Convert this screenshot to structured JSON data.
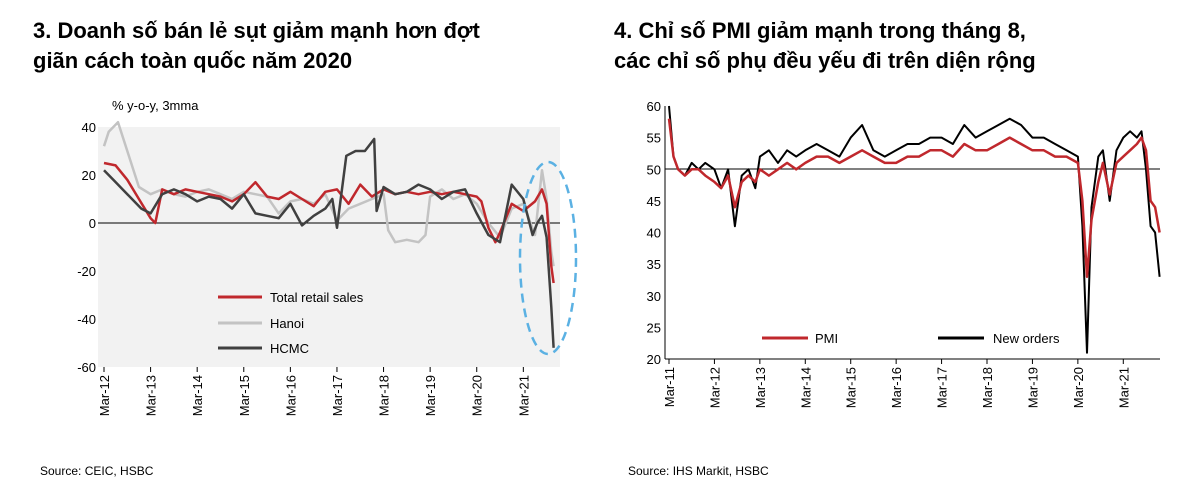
{
  "chart_data": [
    {
      "type": "line",
      "title_line1": "3. Doanh số bán lẻ sụt giảm mạnh hơn đợt",
      "title_line2": "giãn cách toàn quốc năm 2020",
      "ylabel": "% y-o-y, 3mma",
      "ylim": [
        -60,
        40
      ],
      "yticks": [
        "40",
        "20",
        "0",
        "-20",
        "-40",
        "-60"
      ],
      "yticks_values": [
        40,
        20,
        0,
        -20,
        -40,
        -60
      ],
      "xticks": [
        "Mar-12",
        "Mar-13",
        "Mar-14",
        "Mar-15",
        "Mar-16",
        "Mar-17",
        "Mar-18",
        "Mar-19",
        "Mar-20",
        "Mar-21"
      ],
      "xlim": [
        2012.0,
        2021.83
      ],
      "legend": [
        "Total retail sales",
        "Hanoi",
        "HCMC"
      ],
      "source": "Source:  CEIC, HSBC",
      "annotation": "dashed-ellipse highlighting 2021 drop",
      "series": [
        {
          "name": "Total retail sales",
          "color": "#c0282d",
          "x": [
            2012.0,
            2012.25,
            2012.5,
            2012.75,
            2013.0,
            2013.1,
            2013.25,
            2013.5,
            2013.75,
            2014.0,
            2014.25,
            2014.5,
            2014.75,
            2015.0,
            2015.25,
            2015.5,
            2015.75,
            2016.0,
            2016.25,
            2016.5,
            2016.75,
            2017.0,
            2017.25,
            2017.5,
            2017.75,
            2018.0,
            2018.25,
            2018.5,
            2018.75,
            2019.0,
            2019.25,
            2019.5,
            2019.75,
            2020.0,
            2020.1,
            2020.25,
            2020.4,
            2020.5,
            2020.75,
            2021.0,
            2021.25,
            2021.4,
            2021.5,
            2021.6,
            2021.65
          ],
          "y": [
            25,
            24,
            18,
            10,
            2,
            0,
            14,
            12,
            14,
            13,
            12,
            11,
            9,
            12,
            17,
            11,
            10,
            13,
            10,
            7,
            13,
            14,
            8,
            16,
            11,
            14,
            12,
            13,
            12,
            13,
            12,
            13,
            12,
            11,
            9,
            -2,
            -8,
            -4,
            8,
            5,
            9,
            14,
            8,
            -18,
            -25
          ]
        },
        {
          "name": "Hanoi",
          "color": "#c3c3c3",
          "x": [
            2012.0,
            2012.1,
            2012.3,
            2012.5,
            2012.75,
            2013.0,
            2013.25,
            2013.5,
            2013.75,
            2014.0,
            2014.25,
            2014.5,
            2014.75,
            2015.0,
            2015.25,
            2015.5,
            2015.75,
            2016.0,
            2016.25,
            2016.5,
            2016.75,
            2017.0,
            2017.25,
            2017.5,
            2017.75,
            2018.0,
            2018.1,
            2018.25,
            2018.5,
            2018.75,
            2018.9,
            2019.0,
            2019.25,
            2019.5,
            2019.75,
            2020.0,
            2020.25,
            2020.5,
            2020.75,
            2021.0,
            2021.25,
            2021.4,
            2021.5,
            2021.6,
            2021.65
          ],
          "y": [
            32,
            38,
            42,
            30,
            15,
            12,
            14,
            12,
            11,
            13,
            14,
            12,
            10,
            13,
            12,
            11,
            4,
            9,
            10,
            8,
            12,
            1,
            6,
            8,
            10,
            12,
            -3,
            -8,
            -7,
            -8,
            -5,
            11,
            14,
            10,
            12,
            8,
            0,
            -6,
            6,
            8,
            -5,
            22,
            10,
            -12,
            -18
          ]
        },
        {
          "name": "HCMC",
          "color": "#404040",
          "x": [
            2012.0,
            2012.2,
            2012.4,
            2012.6,
            2012.8,
            2013.0,
            2013.25,
            2013.5,
            2013.75,
            2014.0,
            2014.25,
            2014.5,
            2014.75,
            2015.0,
            2015.25,
            2015.5,
            2015.75,
            2016.0,
            2016.25,
            2016.5,
            2016.75,
            2016.9,
            2017.0,
            2017.2,
            2017.4,
            2017.6,
            2017.8,
            2017.85,
            2018.0,
            2018.25,
            2018.5,
            2018.75,
            2019.0,
            2019.25,
            2019.5,
            2019.75,
            2020.0,
            2020.25,
            2020.5,
            2020.75,
            2021.0,
            2021.2,
            2021.3,
            2021.4,
            2021.5,
            2021.6,
            2021.65
          ],
          "y": [
            22,
            18,
            14,
            10,
            6,
            4,
            12,
            14,
            12,
            9,
            11,
            10,
            6,
            12,
            4,
            3,
            2,
            8,
            -1,
            3,
            6,
            10,
            -2,
            28,
            30,
            30,
            35,
            5,
            15,
            12,
            13,
            16,
            14,
            10,
            13,
            14,
            4,
            -5,
            -8,
            16,
            10,
            -5,
            0,
            3,
            -6,
            -35,
            -52
          ]
        }
      ]
    },
    {
      "type": "line",
      "title_line1": "4. Chỉ số PMI giảm mạnh trong tháng 8,",
      "title_line2": "các chỉ số phụ đều yếu đi trên diện rộng",
      "ylim": [
        20,
        60
      ],
      "yticks": [
        "60",
        "55",
        "50",
        "45",
        "40",
        "35",
        "30",
        "25",
        "20"
      ],
      "yticks_values": [
        60,
        55,
        50,
        45,
        40,
        35,
        30,
        25,
        20
      ],
      "xticks": [
        "Mar-11",
        "Mar-12",
        "Mar-13",
        "Mar-14",
        "Mar-15",
        "Mar-16",
        "Mar-17",
        "Mar-18",
        "Mar-19",
        "Mar-20",
        "Mar-21"
      ],
      "xlim": [
        2011.0,
        2021.83
      ],
      "legend": [
        "PMI",
        "New orders"
      ],
      "source": "Source:  IHS Markit, HSBC",
      "series": [
        {
          "name": "PMI",
          "color": "#c0282d",
          "x": [
            2011.0,
            2011.1,
            2011.2,
            2011.35,
            2011.5,
            2011.65,
            2011.8,
            2012.0,
            2012.15,
            2012.3,
            2012.45,
            2012.6,
            2012.75,
            2012.9,
            2013.0,
            2013.2,
            2013.4,
            2013.6,
            2013.8,
            2014.0,
            2014.25,
            2014.5,
            2014.75,
            2015.0,
            2015.25,
            2015.5,
            2015.75,
            2016.0,
            2016.25,
            2016.5,
            2016.75,
            2017.0,
            2017.25,
            2017.5,
            2017.75,
            2018.0,
            2018.25,
            2018.5,
            2018.75,
            2019.0,
            2019.25,
            2019.5,
            2019.75,
            2020.0,
            2020.1,
            2020.2,
            2020.3,
            2020.45,
            2020.55,
            2020.7,
            2020.85,
            2021.0,
            2021.15,
            2021.3,
            2021.4,
            2021.5,
            2021.6,
            2021.7,
            2021.8
          ],
          "y": [
            58,
            52,
            50,
            49,
            50,
            50,
            49,
            48,
            47,
            49,
            44,
            48,
            49,
            48,
            50,
            49,
            50,
            51,
            50,
            51,
            52,
            52,
            51,
            52,
            53,
            52,
            51,
            51,
            52,
            52,
            53,
            53,
            52,
            54,
            53,
            53,
            54,
            55,
            54,
            53,
            53,
            52,
            52,
            51,
            45,
            33,
            42,
            48,
            51,
            46,
            51,
            52,
            53,
            54,
            55,
            53,
            45,
            44,
            40
          ]
        },
        {
          "name": "New orders",
          "color": "#000000",
          "x": [
            2011.0,
            2011.1,
            2011.2,
            2011.35,
            2011.5,
            2011.65,
            2011.8,
            2012.0,
            2012.15,
            2012.3,
            2012.45,
            2012.6,
            2012.75,
            2012.9,
            2013.0,
            2013.2,
            2013.4,
            2013.6,
            2013.8,
            2014.0,
            2014.25,
            2014.5,
            2014.75,
            2015.0,
            2015.25,
            2015.5,
            2015.75,
            2016.0,
            2016.25,
            2016.5,
            2016.75,
            2017.0,
            2017.25,
            2017.5,
            2017.75,
            2018.0,
            2018.25,
            2018.5,
            2018.75,
            2019.0,
            2019.25,
            2019.5,
            2019.75,
            2020.0,
            2020.1,
            2020.2,
            2020.3,
            2020.45,
            2020.55,
            2020.7,
            2020.85,
            2021.0,
            2021.15,
            2021.3,
            2021.4,
            2021.5,
            2021.6,
            2021.7,
            2021.8
          ],
          "y": [
            60,
            52,
            50,
            49,
            51,
            50,
            51,
            50,
            47,
            50,
            41,
            49,
            50,
            47,
            52,
            53,
            51,
            53,
            52,
            53,
            54,
            53,
            52,
            55,
            57,
            53,
            52,
            53,
            54,
            54,
            55,
            55,
            54,
            57,
            55,
            56,
            57,
            58,
            57,
            55,
            55,
            54,
            53,
            52,
            41,
            21,
            44,
            52,
            53,
            45,
            53,
            55,
            56,
            55,
            56,
            50,
            41,
            40,
            33
          ]
        }
      ]
    }
  ]
}
